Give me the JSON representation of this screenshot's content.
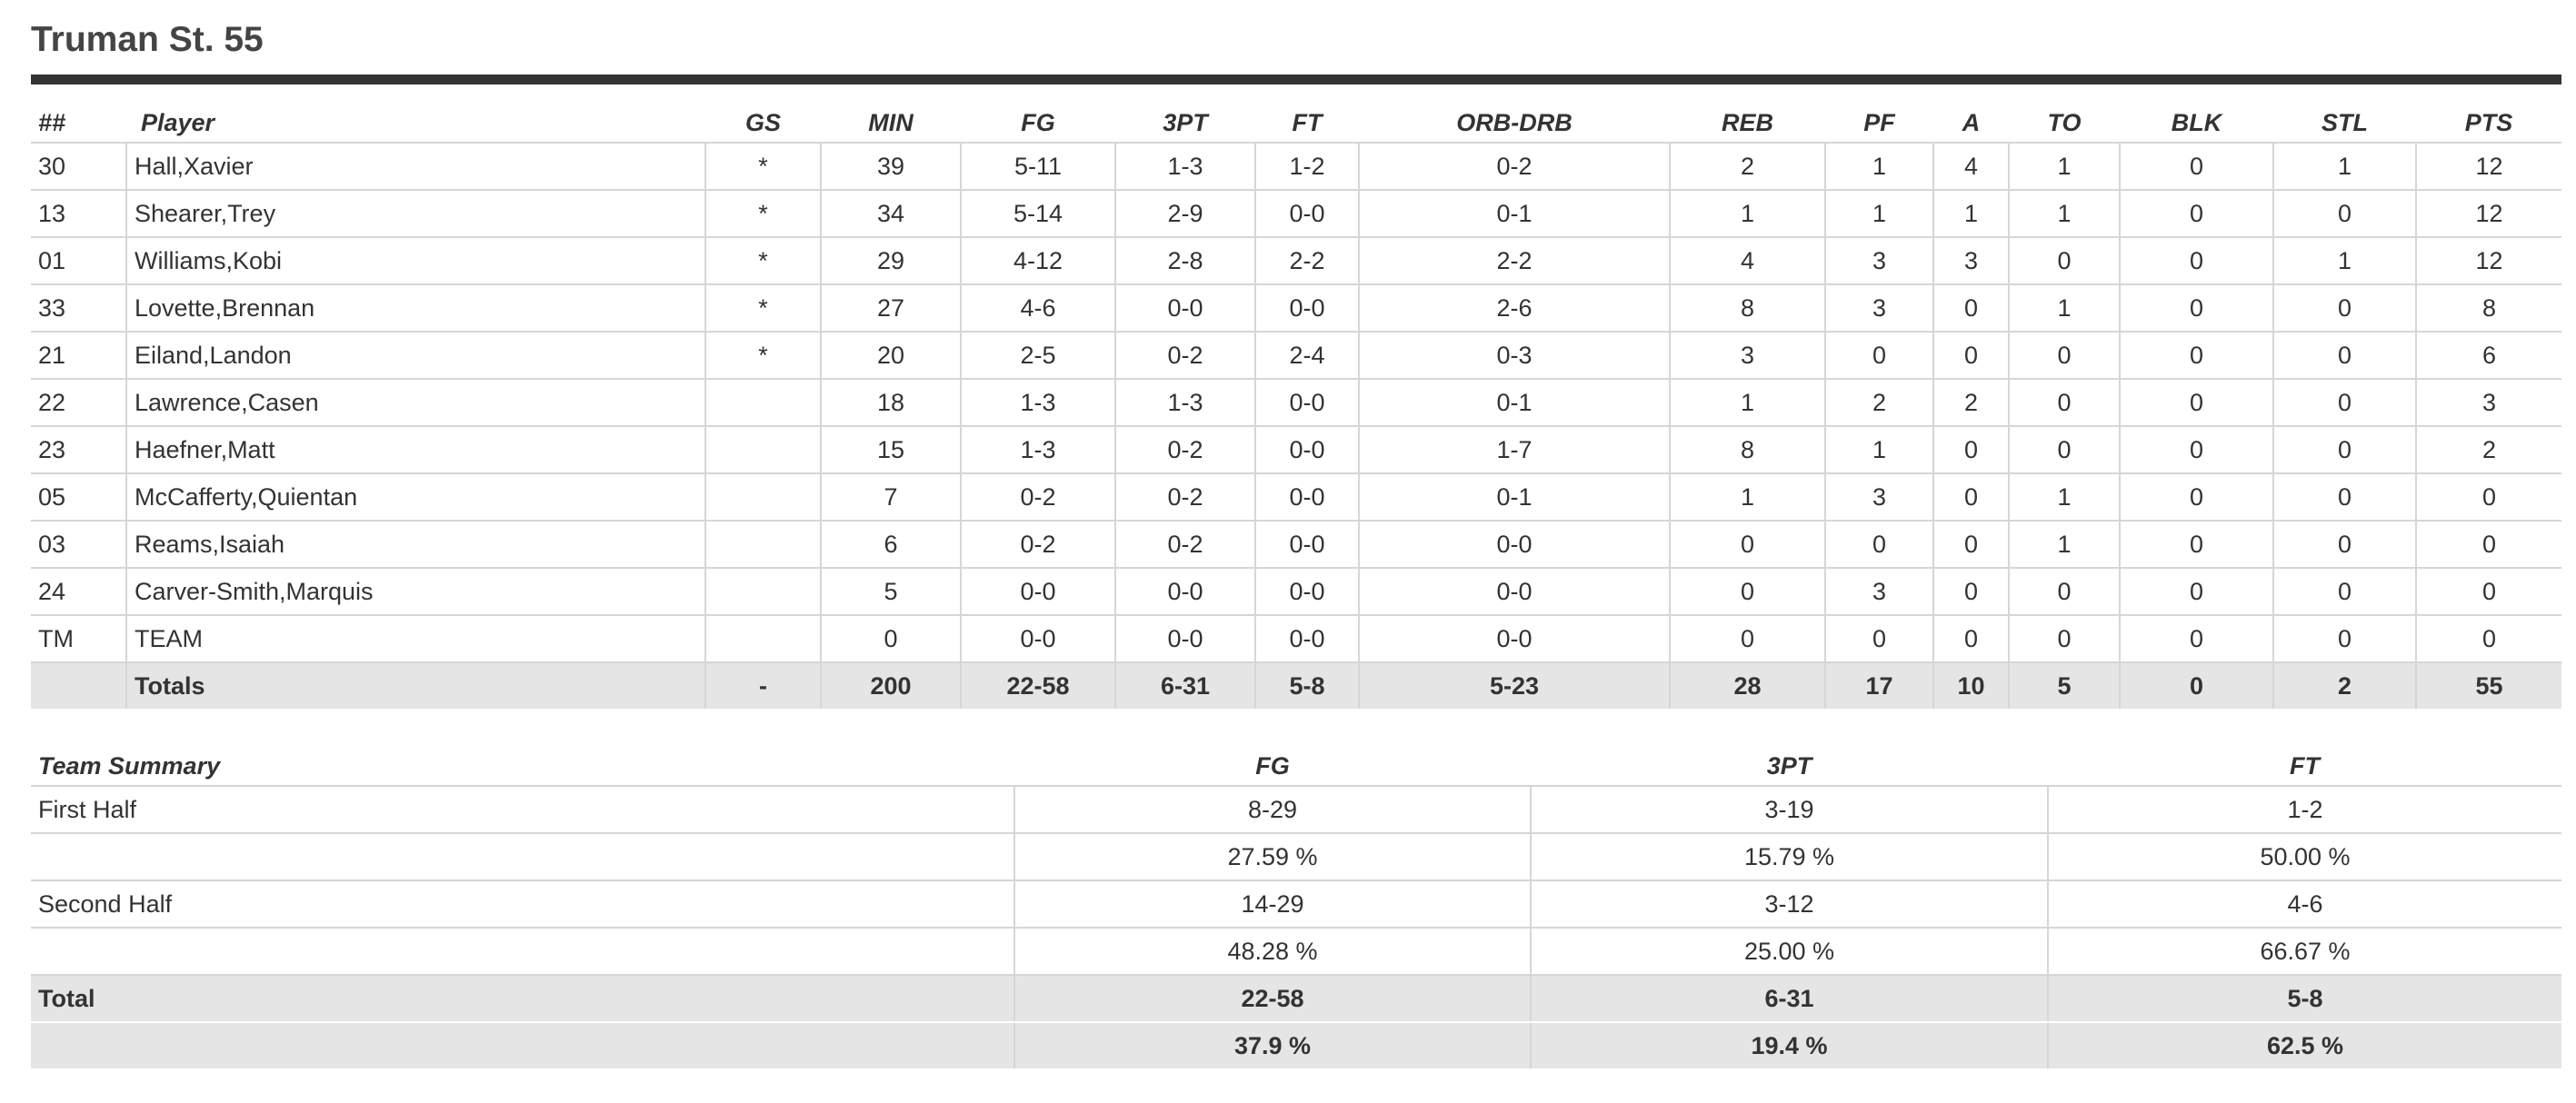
{
  "team_title": "Truman St. 55",
  "box": {
    "headers": [
      "##",
      "Player",
      "GS",
      "MIN",
      "FG",
      "3PT",
      "FT",
      "ORB-DRB",
      "REB",
      "PF",
      "A",
      "TO",
      "BLK",
      "STL",
      "PTS"
    ],
    "rows": [
      [
        "30",
        "Hall,Xavier",
        "*",
        "39",
        "5-11",
        "1-3",
        "1-2",
        "0-2",
        "2",
        "1",
        "4",
        "1",
        "0",
        "1",
        "12"
      ],
      [
        "13",
        "Shearer,Trey",
        "*",
        "34",
        "5-14",
        "2-9",
        "0-0",
        "0-1",
        "1",
        "1",
        "1",
        "1",
        "0",
        "0",
        "12"
      ],
      [
        "01",
        "Williams,Kobi",
        "*",
        "29",
        "4-12",
        "2-8",
        "2-2",
        "2-2",
        "4",
        "3",
        "3",
        "0",
        "0",
        "1",
        "12"
      ],
      [
        "33",
        "Lovette,Brennan",
        "*",
        "27",
        "4-6",
        "0-0",
        "0-0",
        "2-6",
        "8",
        "3",
        "0",
        "1",
        "0",
        "0",
        "8"
      ],
      [
        "21",
        "Eiland,Landon",
        "*",
        "20",
        "2-5",
        "0-2",
        "2-4",
        "0-3",
        "3",
        "0",
        "0",
        "0",
        "0",
        "0",
        "6"
      ],
      [
        "22",
        "Lawrence,Casen",
        "",
        "18",
        "1-3",
        "1-3",
        "0-0",
        "0-1",
        "1",
        "2",
        "2",
        "0",
        "0",
        "0",
        "3"
      ],
      [
        "23",
        "Haefner,Matt",
        "",
        "15",
        "1-3",
        "0-2",
        "0-0",
        "1-7",
        "8",
        "1",
        "0",
        "0",
        "0",
        "0",
        "2"
      ],
      [
        "05",
        "McCafferty,Quientan",
        "",
        "7",
        "0-2",
        "0-2",
        "0-0",
        "0-1",
        "1",
        "3",
        "0",
        "1",
        "0",
        "0",
        "0"
      ],
      [
        "03",
        "Reams,Isaiah",
        "",
        "6",
        "0-2",
        "0-2",
        "0-0",
        "0-0",
        "0",
        "0",
        "0",
        "1",
        "0",
        "0",
        "0"
      ],
      [
        "24",
        "Carver-Smith,Marquis",
        "",
        "5",
        "0-0",
        "0-0",
        "0-0",
        "0-0",
        "0",
        "3",
        "0",
        "0",
        "0",
        "0",
        "0"
      ],
      [
        "TM",
        "TEAM",
        "",
        "0",
        "0-0",
        "0-0",
        "0-0",
        "0-0",
        "0",
        "0",
        "0",
        "0",
        "0",
        "0",
        "0"
      ]
    ],
    "totals": [
      "",
      "Totals",
      "-",
      "200",
      "22-58",
      "6-31",
      "5-8",
      "5-23",
      "28",
      "17",
      "10",
      "5",
      "0",
      "2",
      "55"
    ]
  },
  "summary": {
    "headers": [
      "Team Summary",
      "FG",
      "3PT",
      "FT"
    ],
    "rows": [
      {
        "label": "First Half",
        "made": [
          "8-29",
          "3-19",
          "1-2"
        ],
        "pct": [
          "27.59 %",
          "15.79 %",
          "50.00 %"
        ]
      },
      {
        "label": "Second Half",
        "made": [
          "14-29",
          "3-12",
          "4-6"
        ],
        "pct": [
          "48.28 %",
          "25.00 %",
          "66.67 %"
        ]
      }
    ],
    "total": {
      "label": "Total",
      "made": [
        "22-58",
        "6-31",
        "5-8"
      ],
      "pct": [
        "37.9 %",
        "19.4 %",
        "62.5 %"
      ]
    }
  }
}
